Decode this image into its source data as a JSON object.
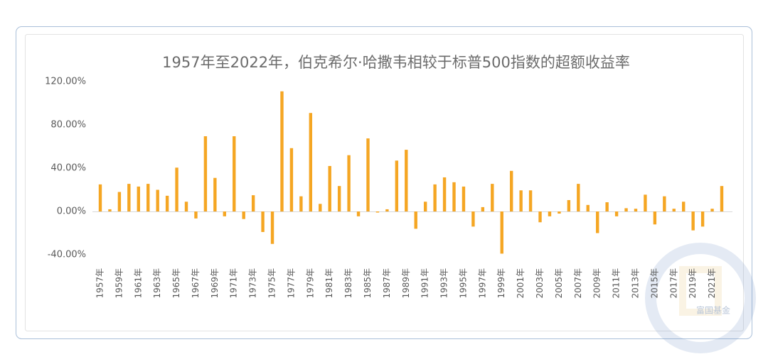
{
  "chart_data": {
    "type": "bar",
    "title": "1957年至2022年，伯克希尔·哈撒韦相较于标普500指数的超额收益率",
    "categories": [
      "1957年",
      null,
      "1959年",
      null,
      "1961年",
      null,
      "1963年",
      null,
      "1965年",
      null,
      "1967年",
      null,
      "1969年",
      null,
      "1971年",
      null,
      "1973年",
      null,
      "1975年",
      null,
      "1977年",
      null,
      "1979年",
      null,
      "1981年",
      null,
      "1983年",
      null,
      "1985年",
      null,
      "1987年",
      null,
      "1989年",
      null,
      "1991年",
      null,
      "1993年",
      null,
      "1995年",
      null,
      "1997年",
      null,
      "1999年",
      null,
      "2001年",
      null,
      "2003年",
      null,
      "2005年",
      null,
      "2007年",
      null,
      "2009年",
      null,
      "2011年",
      null,
      "2013年",
      null,
      "2015年",
      null,
      "2017年",
      null,
      "2019年",
      null,
      "2021年",
      null
    ],
    "values": [
      25,
      2,
      18,
      25.5,
      23,
      25.5,
      20,
      14.5,
      40.5,
      9,
      -6.5,
      69.5,
      31,
      -4.5,
      69.5,
      -7,
      15,
      -19,
      -30,
      111,
      58.5,
      14,
      91,
      7,
      42,
      23.5,
      52,
      -4.5,
      67.5,
      -1,
      2,
      47,
      57,
      -16,
      9,
      25,
      31.5,
      27,
      23,
      -14,
      4,
      25.5,
      -39,
      37.5,
      19.5,
      19.5,
      -10,
      -4.5,
      -2,
      10.5,
      25.5,
      6,
      -20,
      8.5,
      -4.5,
      3,
      2.5,
      15.5,
      -12,
      14,
      2.5,
      9,
      -17.5,
      -14,
      2.5,
      23.5
    ],
    "color": "#f5a623",
    "ylim": [
      -40,
      120
    ],
    "yticks": [
      {
        "value": -40,
        "label": "-40.00%"
      },
      {
        "value": 0,
        "label": "0.00%"
      },
      {
        "value": 40,
        "label": "40.00%"
      },
      {
        "value": 80,
        "label": "80.00%"
      },
      {
        "value": 120,
        "label": "120.00%"
      }
    ],
    "grid": false,
    "watermark": "富国基金"
  }
}
